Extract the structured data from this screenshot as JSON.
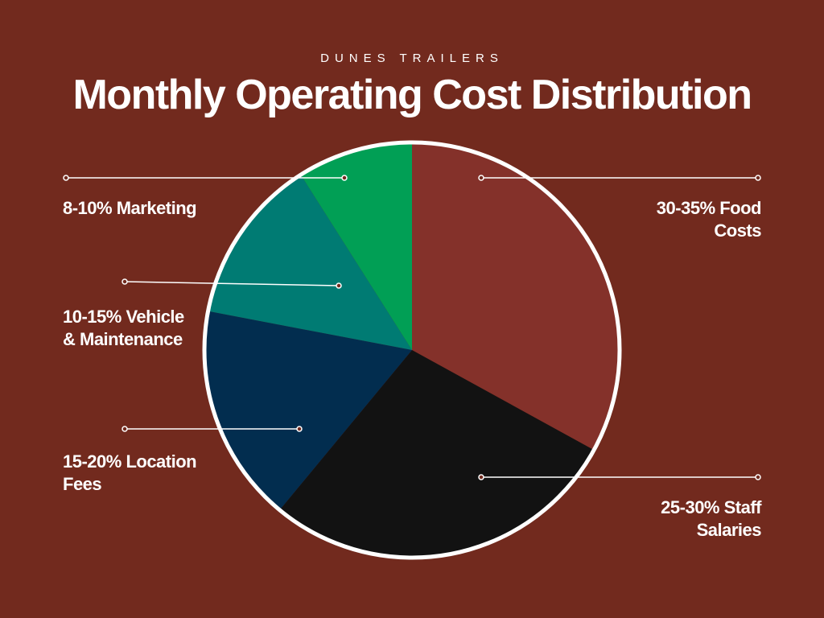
{
  "chart_data": {
    "type": "pie",
    "subtitle": "DUNES TRAILERS",
    "title": "Monthly Operating Cost Distribution",
    "categories": [
      "30-35% Food Costs",
      "25-30% Staff Salaries",
      "15-20% Location Fees",
      "10-15% Vehicle & Maintenance",
      "8-10% Marketing"
    ],
    "values": [
      33,
      28,
      17,
      13,
      9
    ],
    "colors": [
      "#84312a",
      "#121212",
      "#022d4f",
      "#007b73",
      "#019f55"
    ]
  }
}
